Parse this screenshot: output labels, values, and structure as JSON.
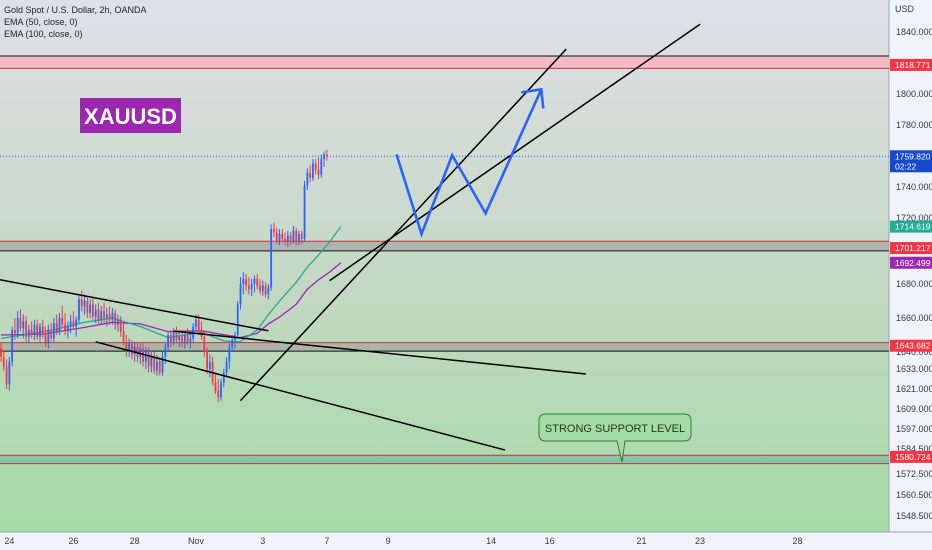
{
  "header": {
    "title": "Gold Spot / U.S. Dollar, 2h, OANDA",
    "indicators": [
      "EMA (50, close, 0)",
      "EMA (100, close, 0)"
    ]
  },
  "watermark": {
    "text": "XAUUSD",
    "bg_color": "#9c27b0"
  },
  "annotation": {
    "text": "STRONG SUPPORT LEVEL"
  },
  "colors": {
    "bull": "#2962ff",
    "bear": "#f23645",
    "ema50": "#22ab94",
    "ema100": "#9c27b0",
    "projection": "#2962ff",
    "zone_red": "#f7b5c3",
    "zone_gray": "#9e9e9e",
    "zone_teal": "#63b8a6",
    "bg_top": "#dfe0e7",
    "bg_bottom": "#a5dba6"
  },
  "chart_data": {
    "type": "candlestick",
    "title": "Gold Spot / U.S. Dollar, 2h, OANDA",
    "currency": "USD",
    "y_ticks": [
      1840,
      1820,
      1800,
      1780,
      1760,
      1740,
      1720,
      1700,
      1680,
      1660,
      1640,
      1633,
      1621,
      1609,
      1597,
      1584.5,
      1572.5,
      1560.5,
      1548.5
    ],
    "y_tick_labels": [
      "1840.000",
      "1820.000",
      "1800.000",
      "1780.000",
      "1760.000",
      "1740.000",
      "1720.000",
      "1700.000",
      "1680.000",
      "1660.000",
      "1640.000",
      "1633.000",
      "1621.000",
      "1609.000",
      "1597.000",
      "1584.500",
      "1572.500",
      "1560.500",
      "1548.500"
    ],
    "x_ticks": [
      {
        "label": "24",
        "index": 3
      },
      {
        "label": "26",
        "index": 26
      },
      {
        "label": "28",
        "index": 48
      },
      {
        "label": "Nov",
        "index": 70
      },
      {
        "label": "3",
        "index": 94
      },
      {
        "label": "7",
        "index": 117
      },
      {
        "label": "9",
        "index": 139
      },
      {
        "label": "14",
        "index": 176
      },
      {
        "label": "16",
        "index": 197
      },
      {
        "label": "21",
        "index": 230
      },
      {
        "label": "23",
        "index": 251
      },
      {
        "label": "28",
        "index": 286
      }
    ],
    "price_labels": [
      {
        "text": "1818.771",
        "value": 1818.771,
        "color": "#f23645"
      },
      {
        "text": "1759.820",
        "sub": "02:22",
        "value": 1759.82,
        "color": "#1848cc"
      },
      {
        "text": "1714.619",
        "value": 1714.619,
        "color": "#22ab94"
      },
      {
        "text": "1701.217",
        "value": 1701.217,
        "color": "#f23645"
      },
      {
        "text": "1692.499",
        "value": 1692.499,
        "color": "#9c27b0"
      },
      {
        "text": "1643.682",
        "value": 1643.682,
        "color": "#f23645"
      },
      {
        "text": "1580.724",
        "value": 1580.724,
        "color": "#f23645"
      }
    ],
    "zones": [
      {
        "from": 1816.5,
        "to": 1824.5,
        "style": "red"
      },
      {
        "from": 1699.5,
        "to": 1705.5,
        "style": "gray"
      },
      {
        "from": 1640.5,
        "to": 1645.5,
        "style": "gray"
      },
      {
        "from": 1577.5,
        "to": 1581.5,
        "style": "teal"
      }
    ],
    "candles": [
      [
        1642.0,
        1645.0,
        1636.0,
        1638.0
      ],
      [
        1638.0,
        1641.0,
        1632.0,
        1634.0
      ],
      [
        1634.0,
        1637.0,
        1621.0,
        1624.0
      ],
      [
        1624.0,
        1638.0,
        1620.0,
        1636.0
      ],
      [
        1636.0,
        1655.0,
        1634.0,
        1653.0
      ],
      [
        1653.0,
        1660.0,
        1647.0,
        1651.0
      ],
      [
        1651.0,
        1664.0,
        1648.0,
        1660.0
      ],
      [
        1660.0,
        1665.0,
        1652.0,
        1654.0
      ],
      [
        1654.0,
        1662.0,
        1648.0,
        1658.0
      ],
      [
        1658.0,
        1661.0,
        1646.0,
        1649.0
      ],
      [
        1649.0,
        1656.0,
        1645.0,
        1653.0
      ],
      [
        1653.0,
        1658.0,
        1648.0,
        1650.0
      ],
      [
        1650.0,
        1659.0,
        1647.0,
        1656.0
      ],
      [
        1656.0,
        1659.0,
        1647.0,
        1649.0
      ],
      [
        1649.0,
        1657.0,
        1646.0,
        1655.0
      ],
      [
        1655.0,
        1659.0,
        1648.0,
        1651.0
      ],
      [
        1651.0,
        1655.0,
        1643.0,
        1645.0
      ],
      [
        1645.0,
        1656.0,
        1642.0,
        1653.0
      ],
      [
        1653.0,
        1657.0,
        1646.0,
        1648.0
      ],
      [
        1648.0,
        1660.0,
        1646.0,
        1657.0
      ],
      [
        1657.0,
        1662.0,
        1650.0,
        1652.0
      ],
      [
        1652.0,
        1663.0,
        1650.0,
        1660.0
      ],
      [
        1660.0,
        1667.0,
        1654.0,
        1656.0
      ],
      [
        1656.0,
        1663.0,
        1650.0,
        1653.0
      ],
      [
        1653.0,
        1658.0,
        1648.0,
        1655.0
      ],
      [
        1655.0,
        1662.0,
        1651.0,
        1658.0
      ],
      [
        1658.0,
        1664.0,
        1653.0,
        1655.0
      ],
      [
        1655.0,
        1661.0,
        1649.0,
        1659.0
      ],
      [
        1659.0,
        1673.0,
        1657.0,
        1671.0
      ],
      [
        1671.0,
        1676.0,
        1664.0,
        1667.0
      ],
      [
        1667.0,
        1674.0,
        1662.0,
        1670.0
      ],
      [
        1670.0,
        1673.0,
        1660.0,
        1663.0
      ],
      [
        1663.0,
        1671.0,
        1660.0,
        1668.0
      ],
      [
        1668.0,
        1672.0,
        1659.0,
        1661.0
      ],
      [
        1661.0,
        1668.0,
        1657.0,
        1665.0
      ],
      [
        1665.0,
        1669.0,
        1656.0,
        1659.0
      ],
      [
        1659.0,
        1667.0,
        1656.0,
        1664.0
      ],
      [
        1664.0,
        1669.0,
        1657.0,
        1660.0
      ],
      [
        1660.0,
        1666.0,
        1655.0,
        1662.0
      ],
      [
        1662.0,
        1667.0,
        1656.0,
        1659.0
      ],
      [
        1659.0,
        1666.0,
        1656.0,
        1663.0
      ],
      [
        1663.0,
        1665.0,
        1653.0,
        1656.0
      ],
      [
        1656.0,
        1662.0,
        1652.0,
        1659.0
      ],
      [
        1659.0,
        1661.0,
        1649.0,
        1652.0
      ],
      [
        1652.0,
        1657.0,
        1644.0,
        1646.0
      ],
      [
        1646.0,
        1650.0,
        1638.0,
        1641.0
      ],
      [
        1641.0,
        1648.0,
        1638.0,
        1645.0
      ],
      [
        1645.0,
        1647.0,
        1637.0,
        1639.0
      ],
      [
        1639.0,
        1646.0,
        1636.0,
        1643.0
      ],
      [
        1643.0,
        1646.0,
        1636.0,
        1638.0
      ],
      [
        1638.0,
        1645.0,
        1635.0,
        1642.0
      ],
      [
        1642.0,
        1645.0,
        1634.0,
        1636.0
      ],
      [
        1636.0,
        1643.0,
        1633.0,
        1640.0
      ],
      [
        1640.0,
        1643.0,
        1631.0,
        1634.0
      ],
      [
        1634.0,
        1641.0,
        1631.0,
        1638.0
      ],
      [
        1638.0,
        1640.0,
        1630.0,
        1632.0
      ],
      [
        1632.0,
        1639.0,
        1629.0,
        1636.0
      ],
      [
        1636.0,
        1638.0,
        1629.0,
        1631.0
      ],
      [
        1631.0,
        1640.0,
        1629.0,
        1638.0
      ],
      [
        1638.0,
        1645.0,
        1635.0,
        1643.0
      ],
      [
        1643.0,
        1652.0,
        1641.0,
        1650.0
      ],
      [
        1650.0,
        1653.0,
        1643.0,
        1646.0
      ],
      [
        1646.0,
        1654.0,
        1644.0,
        1652.0
      ],
      [
        1652.0,
        1655.0,
        1645.0,
        1647.0
      ],
      [
        1647.0,
        1653.0,
        1643.0,
        1649.0
      ],
      [
        1649.0,
        1653.0,
        1643.0,
        1645.0
      ],
      [
        1645.0,
        1652.0,
        1642.0,
        1650.0
      ],
      [
        1650.0,
        1654.0,
        1644.0,
        1646.0
      ],
      [
        1646.0,
        1652.0,
        1642.0,
        1648.0
      ],
      [
        1648.0,
        1657.0,
        1646.0,
        1655.0
      ],
      [
        1655.0,
        1662.0,
        1652.0,
        1659.0
      ],
      [
        1659.0,
        1662.0,
        1650.0,
        1653.0
      ],
      [
        1653.0,
        1658.0,
        1647.0,
        1649.0
      ],
      [
        1649.0,
        1652.0,
        1638.0,
        1640.0
      ],
      [
        1640.0,
        1643.0,
        1630.0,
        1633.0
      ],
      [
        1633.0,
        1639.0,
        1628.0,
        1636.0
      ],
      [
        1636.0,
        1638.0,
        1623.0,
        1625.0
      ],
      [
        1625.0,
        1631.0,
        1618.0,
        1620.0
      ],
      [
        1620.0,
        1627.0,
        1613.0,
        1616.0
      ],
      [
        1616.0,
        1627.0,
        1614.0,
        1625.0
      ],
      [
        1625.0,
        1633.0,
        1622.0,
        1631.0
      ],
      [
        1631.0,
        1638.0,
        1628.0,
        1636.0
      ],
      [
        1636.0,
        1645.0,
        1633.0,
        1643.0
      ],
      [
        1643.0,
        1650.0,
        1640.0,
        1647.0
      ],
      [
        1647.0,
        1652.0,
        1642.0,
        1650.0
      ],
      [
        1650.0,
        1670.0,
        1648.0,
        1668.0
      ],
      [
        1668.0,
        1684.0,
        1665.0,
        1680.0
      ],
      [
        1680.0,
        1687.0,
        1674.0,
        1683.0
      ],
      [
        1683.0,
        1686.0,
        1676.0,
        1679.0
      ],
      [
        1679.0,
        1684.0,
        1674.0,
        1677.0
      ],
      [
        1677.0,
        1683.0,
        1673.0,
        1680.0
      ],
      [
        1680.0,
        1685.0,
        1675.0,
        1683.0
      ],
      [
        1683.0,
        1686.0,
        1677.0,
        1679.0
      ],
      [
        1679.0,
        1683.0,
        1674.0,
        1676.0
      ],
      [
        1676.0,
        1682.0,
        1673.0,
        1679.0
      ],
      [
        1679.0,
        1681.0,
        1672.0,
        1674.0
      ],
      [
        1674.0,
        1680.0,
        1671.0,
        1678.0
      ],
      [
        1678.0,
        1716.0,
        1676.0,
        1713.0
      ],
      [
        1713.0,
        1717.0,
        1708.0,
        1711.0
      ],
      [
        1711.0,
        1714.0,
        1704.0,
        1706.0
      ],
      [
        1706.0,
        1713.0,
        1703.0,
        1710.0
      ],
      [
        1710.0,
        1713.0,
        1705.0,
        1707.0
      ],
      [
        1707.0,
        1711.0,
        1703.0,
        1705.0
      ],
      [
        1705.0,
        1712.0,
        1702.0,
        1709.0
      ],
      [
        1709.0,
        1711.0,
        1703.0,
        1706.0
      ],
      [
        1706.0,
        1715.0,
        1704.0,
        1712.0
      ],
      [
        1712.0,
        1714.0,
        1703.0,
        1705.0
      ],
      [
        1705.0,
        1712.0,
        1703.0,
        1710.0
      ],
      [
        1710.0,
        1712.0,
        1704.0,
        1707.0
      ],
      [
        1707.0,
        1744.0,
        1705.0,
        1741.0
      ],
      [
        1741.0,
        1752.0,
        1738.0,
        1749.0
      ],
      [
        1749.0,
        1754.0,
        1743.0,
        1746.0
      ],
      [
        1746.0,
        1758.0,
        1744.0,
        1755.0
      ],
      [
        1755.0,
        1758.0,
        1748.0,
        1751.0
      ],
      [
        1751.0,
        1759.0,
        1745.0,
        1748.0
      ],
      [
        1748.0,
        1761.0,
        1746.0,
        1758.0
      ],
      [
        1758.0,
        1763.0,
        1753.0,
        1761.0
      ],
      [
        1761.0,
        1764.0,
        1757.0,
        1760.0
      ]
    ],
    "ema50": [
      [
        0,
        1648.0
      ],
      [
        10,
        1650.5
      ],
      [
        20,
        1653.5
      ],
      [
        30,
        1657.5
      ],
      [
        40,
        1660.0
      ],
      [
        50,
        1655.0
      ],
      [
        60,
        1648.5
      ],
      [
        72,
        1651.5
      ],
      [
        80,
        1646.5
      ],
      [
        86,
        1646.0
      ],
      [
        92,
        1653.0
      ],
      [
        96,
        1662.0
      ],
      [
        100,
        1670.0
      ],
      [
        106,
        1681.0
      ],
      [
        110,
        1690.0
      ],
      [
        114,
        1697.0
      ],
      [
        118,
        1705.0
      ],
      [
        122,
        1714.6
      ]
    ],
    "ema100": [
      [
        0,
        1650.0
      ],
      [
        15,
        1650.5
      ],
      [
        30,
        1654.5
      ],
      [
        40,
        1657.5
      ],
      [
        50,
        1656.5
      ],
      [
        60,
        1652.0
      ],
      [
        72,
        1652.5
      ],
      [
        86,
        1648.5
      ],
      [
        92,
        1651.0
      ],
      [
        96,
        1656.5
      ],
      [
        100,
        1660.5
      ],
      [
        106,
        1668.0
      ],
      [
        110,
        1677.0
      ],
      [
        114,
        1682.5
      ],
      [
        118,
        1687.0
      ],
      [
        122,
        1692.5
      ]
    ],
    "trendlines": [
      {
        "from": [
          -2,
          1683.0
        ],
        "to": [
          96,
          1652.5
        ]
      },
      {
        "from": [
          62,
          1652.3
        ],
        "to": [
          210,
          1630.0
        ]
      },
      {
        "from": [
          34,
          1646.0
        ],
        "to": [
          181,
          1584.0
        ]
      },
      {
        "from": [
          86,
          1614.0
        ],
        "to": [
          203,
          1829.0
        ]
      },
      {
        "from": [
          118,
          1682.0
        ],
        "to": [
          251,
          1845.0
        ]
      }
    ],
    "projection": [
      [
        142,
        1761.0
      ],
      [
        151,
        1710.0
      ],
      [
        162,
        1760.5
      ],
      [
        174,
        1723.0
      ],
      [
        194,
        1803.0
      ]
    ]
  }
}
